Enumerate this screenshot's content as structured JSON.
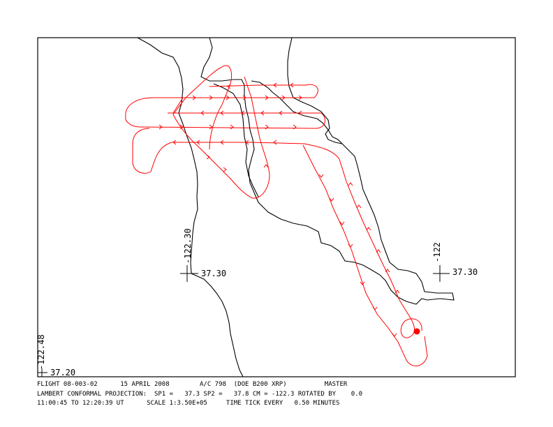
{
  "grid_labels": {
    "mid_lon": "-122.30",
    "mid_lat": "37.30",
    "right_lon": "-122",
    "right_lat": "37.30",
    "left_lon": "-122.48",
    "left_lat": "37.20"
  },
  "footer": {
    "line1": "FLIGHT 08-003-02      15 APRIL 2008        A/C 798  (DOE B200 XRP)          MASTER",
    "line2": "LAMBERT CONFORMAL PROJECTION:  SP1 =   37.3 SP2 =   37.8 CM = -122.3 ROTATED BY    0.0",
    "line3": "11:00:45 TO 12:20:39 UT      SCALE 1:3.50E+05     TIME TICK EVERY   0.50 MINUTES"
  },
  "colors": {
    "track": "#ff0000",
    "coast": "#000000"
  }
}
